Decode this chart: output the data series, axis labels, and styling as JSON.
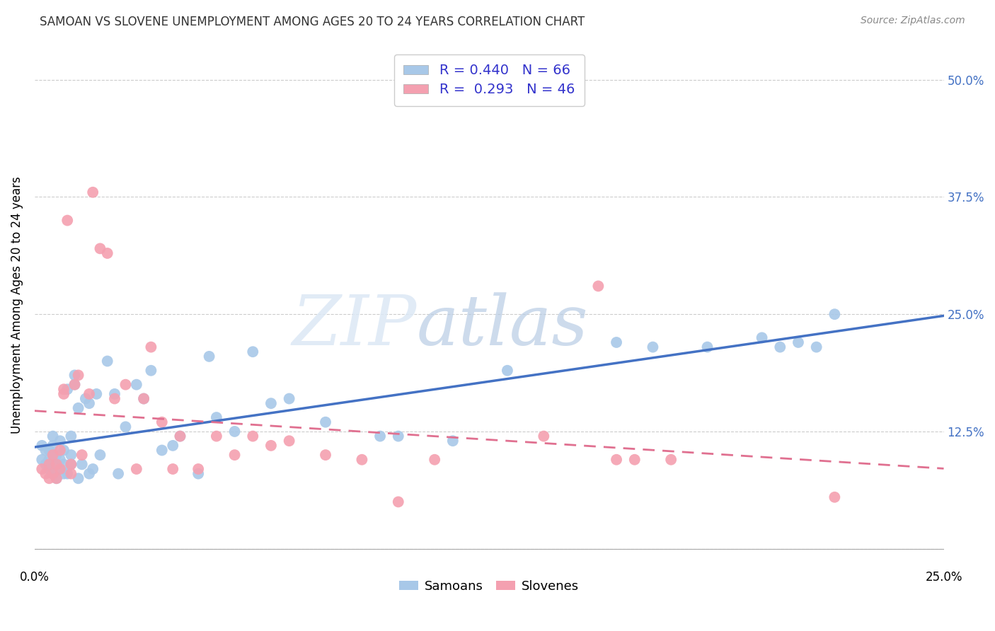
{
  "title": "SAMOAN VS SLOVENE UNEMPLOYMENT AMONG AGES 20 TO 24 YEARS CORRELATION CHART",
  "source": "Source: ZipAtlas.com",
  "ylabel": "Unemployment Among Ages 20 to 24 years",
  "xlim": [
    0.0,
    0.25
  ],
  "ylim": [
    -0.02,
    0.54
  ],
  "samoan_color": "#a8c8e8",
  "slovene_color": "#f4a0b0",
  "samoan_line_color": "#4472c4",
  "slovene_line_color": "#e07090",
  "samoan_R": 0.44,
  "samoan_N": 66,
  "slovene_R": 0.293,
  "slovene_N": 46,
  "legend_r_color": "#3333cc",
  "background_color": "#ffffff",
  "watermark_color": "#dce8f5",
  "samoan_scatter_x": [
    0.002,
    0.002,
    0.003,
    0.003,
    0.004,
    0.004,
    0.004,
    0.005,
    0.005,
    0.005,
    0.005,
    0.006,
    0.006,
    0.006,
    0.007,
    0.007,
    0.007,
    0.008,
    0.008,
    0.008,
    0.009,
    0.009,
    0.01,
    0.01,
    0.01,
    0.011,
    0.011,
    0.012,
    0.012,
    0.013,
    0.014,
    0.015,
    0.015,
    0.016,
    0.017,
    0.018,
    0.02,
    0.022,
    0.023,
    0.025,
    0.028,
    0.03,
    0.032,
    0.035,
    0.038,
    0.04,
    0.045,
    0.048,
    0.05,
    0.055,
    0.06,
    0.065,
    0.07,
    0.08,
    0.095,
    0.1,
    0.115,
    0.13,
    0.16,
    0.17,
    0.185,
    0.2,
    0.205,
    0.21,
    0.215,
    0.22
  ],
  "samoan_scatter_y": [
    0.095,
    0.11,
    0.09,
    0.105,
    0.085,
    0.095,
    0.105,
    0.08,
    0.1,
    0.11,
    0.12,
    0.075,
    0.09,
    0.1,
    0.085,
    0.095,
    0.115,
    0.08,
    0.09,
    0.105,
    0.17,
    0.08,
    0.09,
    0.1,
    0.12,
    0.175,
    0.185,
    0.075,
    0.15,
    0.09,
    0.16,
    0.08,
    0.155,
    0.085,
    0.165,
    0.1,
    0.2,
    0.165,
    0.08,
    0.13,
    0.175,
    0.16,
    0.19,
    0.105,
    0.11,
    0.12,
    0.08,
    0.205,
    0.14,
    0.125,
    0.21,
    0.155,
    0.16,
    0.135,
    0.12,
    0.12,
    0.115,
    0.19,
    0.22,
    0.215,
    0.215,
    0.225,
    0.215,
    0.22,
    0.215,
    0.25
  ],
  "slovene_scatter_x": [
    0.002,
    0.003,
    0.004,
    0.004,
    0.005,
    0.005,
    0.006,
    0.006,
    0.007,
    0.007,
    0.008,
    0.008,
    0.009,
    0.01,
    0.01,
    0.011,
    0.012,
    0.013,
    0.015,
    0.016,
    0.018,
    0.02,
    0.022,
    0.025,
    0.028,
    0.03,
    0.032,
    0.035,
    0.038,
    0.04,
    0.045,
    0.05,
    0.055,
    0.06,
    0.065,
    0.07,
    0.08,
    0.09,
    0.1,
    0.11,
    0.14,
    0.155,
    0.16,
    0.165,
    0.175,
    0.22
  ],
  "slovene_scatter_y": [
    0.085,
    0.08,
    0.075,
    0.09,
    0.08,
    0.1,
    0.075,
    0.09,
    0.085,
    0.105,
    0.165,
    0.17,
    0.35,
    0.08,
    0.09,
    0.175,
    0.185,
    0.1,
    0.165,
    0.38,
    0.32,
    0.315,
    0.16,
    0.175,
    0.085,
    0.16,
    0.215,
    0.135,
    0.085,
    0.12,
    0.085,
    0.12,
    0.1,
    0.12,
    0.11,
    0.115,
    0.1,
    0.095,
    0.05,
    0.095,
    0.12,
    0.28,
    0.095,
    0.095,
    0.095,
    0.055
  ]
}
